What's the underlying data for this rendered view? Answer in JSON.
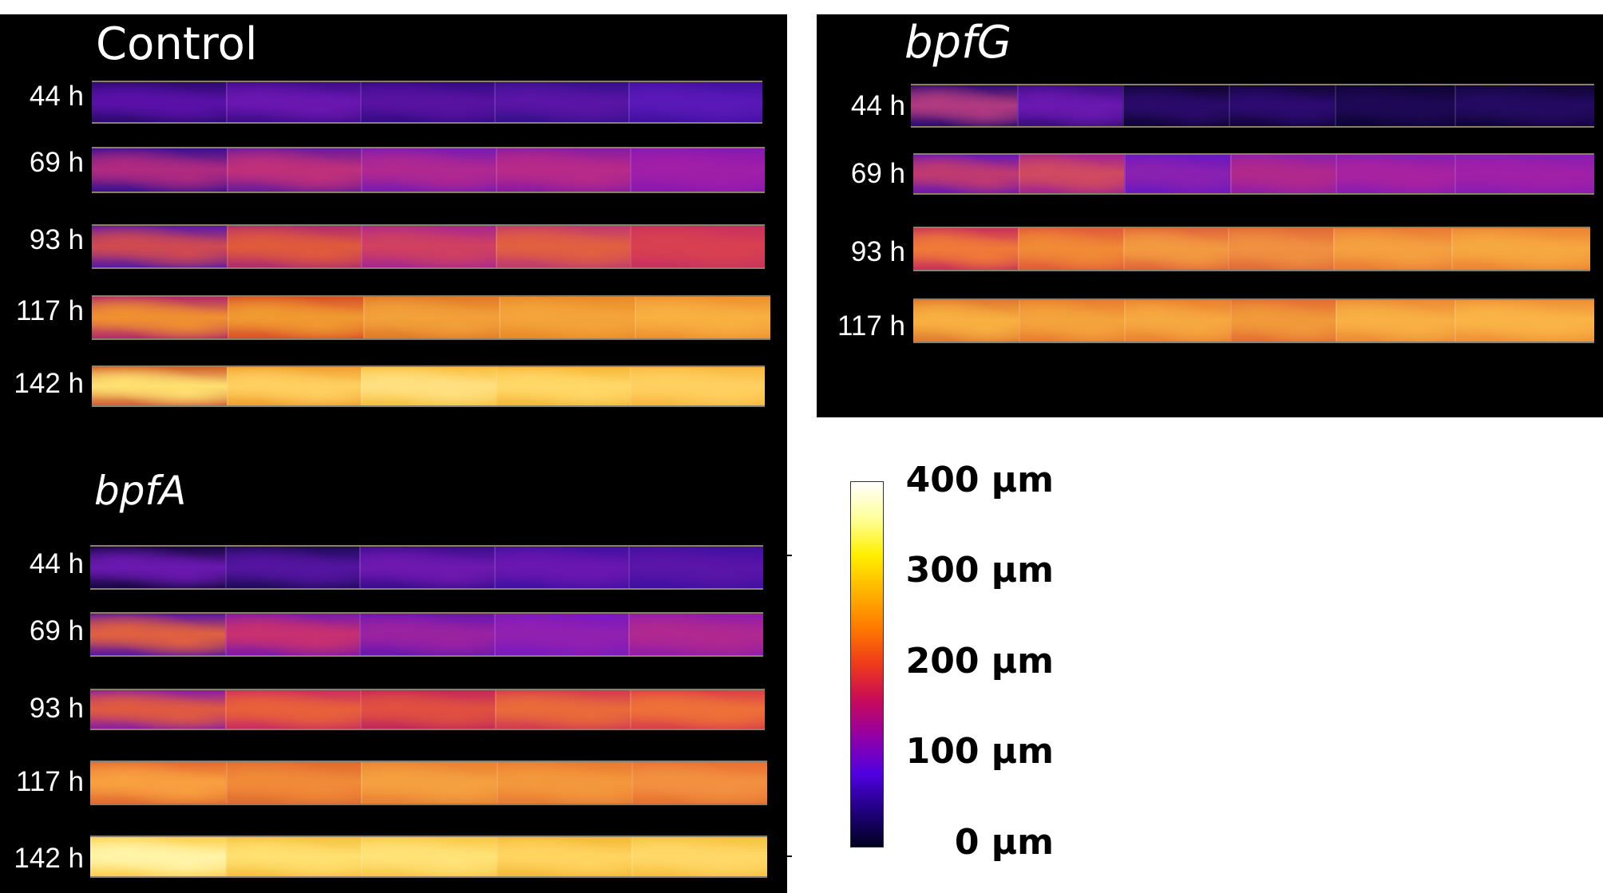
{
  "panels": [
    {
      "name": "control",
      "title": "Control",
      "italic": false,
      "rows": [
        {
          "time": "44 h",
          "segments": [
            [
              "#2a0a6e",
              "#5a10a8"
            ],
            [
              "#3d0c8a",
              "#6a16b0"
            ],
            [
              "#330a85",
              "#5812a0"
            ],
            [
              "#34108a",
              "#5a14a6"
            ],
            [
              "#4010a0",
              "#5a18b8"
            ]
          ]
        },
        {
          "time": "69 h",
          "segments": [
            [
              "#3a1090",
              "#b02a80"
            ],
            [
              "#6a1a9a",
              "#c0307a"
            ],
            [
              "#7a1ab0",
              "#b02890"
            ],
            [
              "#8a1aa0",
              "#b82a88"
            ],
            [
              "#8a18b0",
              "#a01ea8"
            ]
          ]
        },
        {
          "time": "93 h",
          "segments": [
            [
              "#5a18a8",
              "#d04a50"
            ],
            [
              "#b02a70",
              "#e05a3c"
            ],
            [
              "#a82690",
              "#d04060"
            ],
            [
              "#c03870",
              "#e06040"
            ],
            [
              "#c83060",
              "#d84050"
            ]
          ]
        },
        {
          "time": "117 h",
          "segments": [
            [
              "#b02a6a",
              "#f09030"
            ],
            [
              "#d8502a",
              "#f09a30"
            ],
            [
              "#e07a28",
              "#f2a03a"
            ],
            [
              "#e88a28",
              "#f4a43a"
            ],
            [
              "#ee9030",
              "#f8b040"
            ]
          ]
        },
        {
          "time": "142 h",
          "segments": [
            [
              "#d06030",
              "#ffe070"
            ],
            [
              "#f0a030",
              "#ffd060"
            ],
            [
              "#f8c040",
              "#ffe080"
            ],
            [
              "#f6b838",
              "#ffd868"
            ],
            [
              "#f8b840",
              "#ffd060"
            ]
          ]
        }
      ]
    },
    {
      "name": "bpfa",
      "title": "bpfA",
      "italic": true,
      "rows": [
        {
          "time": "44 h",
          "segments": [
            [
              "#140640",
              "#6a18b0"
            ],
            [
              "#1e0a5a",
              "#5414a0"
            ],
            [
              "#3a0c8a",
              "#6e18b0"
            ],
            [
              "#4010a0",
              "#6a16b0"
            ],
            [
              "#3e10a0",
              "#5a14a8"
            ]
          ]
        },
        {
          "time": "69 h",
          "segments": [
            [
              "#5a14a0",
              "#e06040"
            ],
            [
              "#7a1aa8",
              "#c83070"
            ],
            [
              "#6a16b0",
              "#9a22a0"
            ],
            [
              "#7a18c0",
              "#9020b0"
            ],
            [
              "#901ca8",
              "#b02890"
            ]
          ]
        },
        {
          "time": "93 h",
          "segments": [
            [
              "#8a1ea0",
              "#e05a40"
            ],
            [
              "#c82e60",
              "#e8603a"
            ],
            [
              "#c0285a",
              "#e05040"
            ],
            [
              "#d03c50",
              "#ea6a3a"
            ],
            [
              "#d84048",
              "#ee7038"
            ]
          ]
        },
        {
          "time": "117 h",
          "segments": [
            [
              "#e46a30",
              "#f8a040"
            ],
            [
              "#e06a30",
              "#f08a38"
            ],
            [
              "#ea8030",
              "#f4a040"
            ],
            [
              "#e87a30",
              "#f4983c"
            ],
            [
              "#e87030",
              "#f29040"
            ]
          ]
        },
        {
          "time": "142 h",
          "segments": [
            [
              "#ffd050",
              "#fff4a8"
            ],
            [
              "#f6c040",
              "#ffe070"
            ],
            [
              "#f8c848",
              "#ffe278"
            ],
            [
              "#f4b838",
              "#ffd460"
            ],
            [
              "#f6c040",
              "#ffd868"
            ]
          ]
        }
      ]
    },
    {
      "name": "bpfg",
      "title": "bpfG",
      "italic": true,
      "rows": [
        {
          "time": "44 h",
          "segments": [
            [
              "#2a0a70",
              "#b03a80"
            ],
            [
              "#3a0c80",
              "#6a18b0"
            ],
            [
              "#0e0430",
              "#2a0a6a"
            ],
            [
              "#100436",
              "#2c0a70"
            ],
            [
              "#0c0430",
              "#1e0856"
            ],
            [
              "#100436",
              "#240a62"
            ]
          ]
        },
        {
          "time": "69 h",
          "segments": [
            [
              "#6a18b0",
              "#c03a70"
            ],
            [
              "#a02490",
              "#d04a60"
            ],
            [
              "#6a18c0",
              "#8a20b0"
            ],
            [
              "#901ea8",
              "#b0288c"
            ],
            [
              "#8a1cb0",
              "#a822a0"
            ],
            [
              "#8a1cb0",
              "#a020a8"
            ]
          ]
        },
        {
          "time": "93 h",
          "segments": [
            [
              "#c8305a",
              "#f07a38"
            ],
            [
              "#e05a38",
              "#f08a36"
            ],
            [
              "#e06438",
              "#f29a40"
            ],
            [
              "#e06a38",
              "#f09040"
            ],
            [
              "#ea7a34",
              "#f4a040"
            ],
            [
              "#ec8434",
              "#f6a840"
            ]
          ]
        },
        {
          "time": "117 h",
          "segments": [
            [
              "#e07a30",
              "#f8b040"
            ],
            [
              "#e87c30",
              "#f4a43c"
            ],
            [
              "#ea8030",
              "#f6a840"
            ],
            [
              "#e46e32",
              "#f09a3a"
            ],
            [
              "#ec8a34",
              "#f8b044"
            ],
            [
              "#ee9036",
              "#fab446"
            ]
          ]
        }
      ]
    }
  ],
  "colorbar": {
    "labels": [
      "400 µm",
      "300 µm",
      "200 µm",
      "100 µm",
      "0 µm"
    ],
    "colors": [
      "#ffffff",
      "#ffff9a",
      "#fff000",
      "#ffb400",
      "#ff7a00",
      "#ee3a1a",
      "#c80a5a",
      "#9000a8",
      "#5000e0",
      "#200080",
      "#000020"
    ]
  }
}
